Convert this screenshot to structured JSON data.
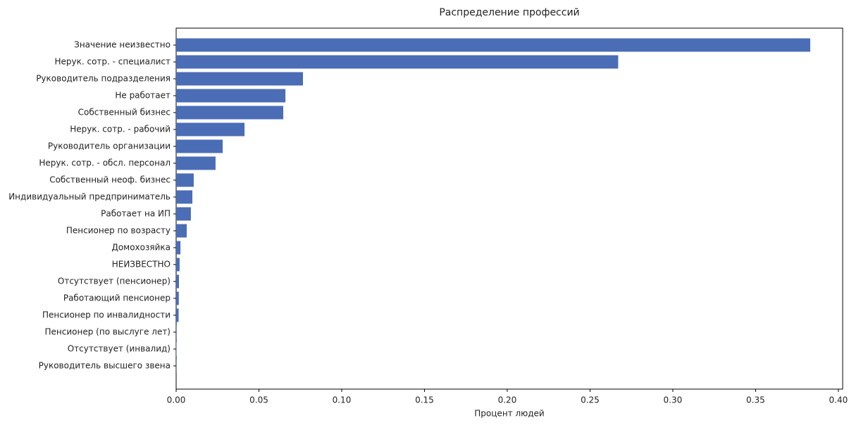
{
  "chart_data": {
    "type": "barh",
    "title": "Распределение профессий",
    "x_label": "Процент людей",
    "categories": [
      "Значение неизвестно",
      "Нерук. сотр. - специалист",
      "Руководитель подразделения",
      "Не работает",
      "Собственный бизнес",
      "Нерук. сотр. - рабочий",
      "Руководитель организации",
      "Нерук. сотр. - обсл. персонал",
      "Собственный неоф. бизнес",
      "Индивидуальный предприниматель",
      "Работает на ИП",
      "Пенсионер по возрасту",
      "Домохозяйка",
      "НЕИЗВЕСТНО",
      "Отсутствует (пенсионер)",
      "Работающий пенсионер",
      "Пенсионер по инвалидности",
      "Пенсионер (по выслуге лет)",
      "Отсутствует (инвалид)",
      "Руководитель высшего звена"
    ],
    "values": [
      0.383,
      0.267,
      0.0766,
      0.066,
      0.0647,
      0.0413,
      0.0281,
      0.0238,
      0.0106,
      0.0098,
      0.0089,
      0.0064,
      0.0026,
      0.0021,
      0.0017,
      0.0016,
      0.0015,
      0.0003,
      0.0002,
      0.0001
    ],
    "color": "#4a6db5",
    "xlim": [
      0,
      0.4026
    ],
    "xticks": [
      {
        "value": 0,
        "label": "0.00"
      },
      0.05,
      {
        "value": 0.1,
        "label": "0.10"
      },
      0.15,
      {
        "value": 0.2,
        "label": "0.20"
      },
      0.25,
      {
        "value": 0.3,
        "label": "0.30"
      },
      0.35,
      {
        "value": 0.4,
        "label": "0.40"
      }
    ],
    "grid": false
  }
}
